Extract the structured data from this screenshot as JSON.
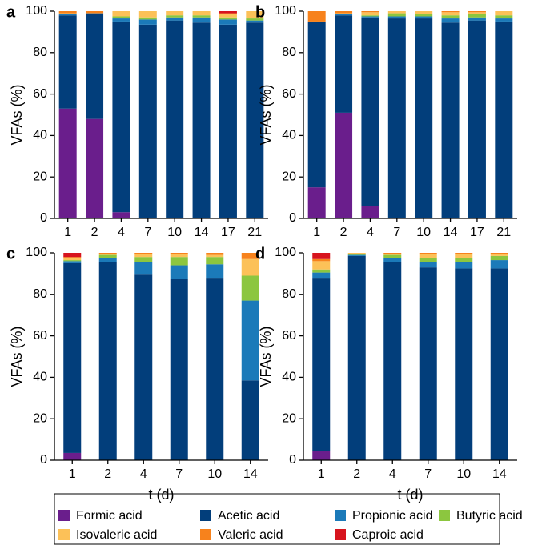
{
  "chart_data": [
    {
      "type": "bar",
      "stacked": true,
      "panel": "a",
      "ylabel": "VFAs (%)",
      "categories": [
        "1",
        "2",
        "4",
        "7",
        "10",
        "14",
        "17",
        "21"
      ],
      "ylim": [
        0,
        100
      ],
      "yticks": [
        0,
        20,
        40,
        60,
        80,
        100
      ],
      "series": [
        {
          "name": "Formic acid",
          "color": "#6a1e8c",
          "values": [
            53,
            48,
            3,
            0,
            0,
            0,
            0,
            0
          ]
        },
        {
          "name": "Acetic acid",
          "color": "#023e7b",
          "values": [
            45,
            50.5,
            92,
            93.5,
            95.5,
            94.5,
            93.5,
            94.5
          ]
        },
        {
          "name": "Propionic acid",
          "color": "#1b7ab9",
          "values": [
            0.5,
            0.5,
            1.5,
            2.5,
            1.5,
            2.5,
            2.5,
            1
          ]
        },
        {
          "name": "Butyric acid",
          "color": "#8cc63f",
          "values": [
            0,
            0,
            1,
            1,
            1,
            1,
            1,
            1
          ]
        },
        {
          "name": "Isovaleric acid",
          "color": "#fcc158",
          "values": [
            0.5,
            0,
            2.5,
            3,
            2,
            2,
            1.5,
            3.5
          ]
        },
        {
          "name": "Valeric acid",
          "color": "#f7821c",
          "values": [
            1,
            1,
            0,
            0,
            0,
            0,
            0.5,
            0
          ]
        },
        {
          "name": "Caproic acid",
          "color": "#d7141e",
          "values": [
            0,
            0,
            0,
            0,
            0,
            0,
            1,
            0
          ]
        }
      ]
    },
    {
      "type": "bar",
      "stacked": true,
      "panel": "b",
      "ylabel": "VFAs (%)",
      "categories": [
        "1",
        "2",
        "4",
        "7",
        "10",
        "14",
        "17",
        "21"
      ],
      "ylim": [
        0,
        100
      ],
      "yticks": [
        0,
        20,
        40,
        60,
        80,
        100
      ],
      "series": [
        {
          "name": "Formic acid",
          "color": "#6a1e8c",
          "values": [
            15,
            51,
            6,
            0,
            0,
            0,
            0,
            0
          ]
        },
        {
          "name": "Acetic acid",
          "color": "#023e7b",
          "values": [
            80,
            47,
            91,
            96.5,
            96.5,
            94.5,
            95.5,
            95
          ]
        },
        {
          "name": "Propionic acid",
          "color": "#1b7ab9",
          "values": [
            0,
            0.5,
            0.5,
            1,
            1,
            2,
            1.5,
            1.5
          ]
        },
        {
          "name": "Butyric acid",
          "color": "#8cc63f",
          "values": [
            0,
            0,
            0.5,
            1.5,
            1,
            1.5,
            1.5,
            1.5
          ]
        },
        {
          "name": "Isovaleric acid",
          "color": "#fcc158",
          "values": [
            0,
            0.5,
            1.5,
            1,
            1.5,
            1.5,
            1,
            2
          ]
        },
        {
          "name": "Valeric acid",
          "color": "#f7821c",
          "values": [
            5,
            1,
            0.5,
            0,
            0,
            0.5,
            0.5,
            0
          ]
        },
        {
          "name": "Caproic acid",
          "color": "#d7141e",
          "values": [
            0,
            0,
            0,
            0,
            0,
            0,
            0,
            0
          ]
        }
      ]
    },
    {
      "type": "bar",
      "stacked": true,
      "panel": "c",
      "ylabel": "VFAs (%)",
      "xlabel": "t (d)",
      "categories": [
        "1",
        "2",
        "4",
        "7",
        "10",
        "14"
      ],
      "ylim": [
        0,
        100
      ],
      "yticks": [
        0,
        20,
        40,
        60,
        80,
        100
      ],
      "series": [
        {
          "name": "Formic acid",
          "color": "#6a1e8c",
          "values": [
            3.5,
            0,
            0,
            0,
            0,
            0
          ]
        },
        {
          "name": "Acetic acid",
          "color": "#023e7b",
          "values": [
            91.5,
            95.5,
            89.5,
            87.5,
            88,
            38.5
          ]
        },
        {
          "name": "Propionic acid",
          "color": "#1b7ab9",
          "values": [
            1,
            2,
            6,
            6.5,
            6.5,
            38.5
          ]
        },
        {
          "name": "Butyric acid",
          "color": "#8cc63f",
          "values": [
            0.5,
            1.5,
            2.5,
            4,
            3.5,
            12
          ]
        },
        {
          "name": "Isovaleric acid",
          "color": "#fcc158",
          "values": [
            1,
            0.5,
            1.5,
            1.5,
            1,
            8
          ]
        },
        {
          "name": "Valeric acid",
          "color": "#f7821c",
          "values": [
            0.5,
            0.5,
            0.5,
            0.5,
            1,
            3
          ]
        },
        {
          "name": "Caproic acid",
          "color": "#d7141e",
          "values": [
            2,
            0,
            0,
            0,
            0,
            0
          ]
        }
      ]
    },
    {
      "type": "bar",
      "stacked": true,
      "panel": "d",
      "ylabel": "VFAs (%)",
      "xlabel": "t (d)",
      "categories": [
        "1",
        "2",
        "4",
        "7",
        "10",
        "14"
      ],
      "ylim": [
        0,
        100
      ],
      "yticks": [
        0,
        20,
        40,
        60,
        80,
        100
      ],
      "series": [
        {
          "name": "Formic acid",
          "color": "#6a1e8c",
          "values": [
            4.5,
            0,
            0,
            0,
            0,
            0
          ]
        },
        {
          "name": "Acetic acid",
          "color": "#023e7b",
          "values": [
            83.5,
            98.5,
            95.5,
            93,
            92.5,
            92.5
          ]
        },
        {
          "name": "Propionic acid",
          "color": "#1b7ab9",
          "values": [
            2.5,
            0.5,
            2,
            2.5,
            3,
            4
          ]
        },
        {
          "name": "Butyric acid",
          "color": "#8cc63f",
          "values": [
            1.5,
            0.5,
            1.5,
            2,
            2,
            2
          ]
        },
        {
          "name": "Isovaleric acid",
          "color": "#fcc158",
          "values": [
            4,
            0.5,
            0.5,
            2,
            2,
            1
          ]
        },
        {
          "name": "Valeric acid",
          "color": "#f7821c",
          "values": [
            1,
            0,
            0.5,
            0.5,
            0.5,
            0.5
          ]
        },
        {
          "name": "Caproic acid",
          "color": "#d7141e",
          "values": [
            3,
            0,
            0,
            0,
            0,
            0
          ]
        }
      ]
    }
  ]
}
